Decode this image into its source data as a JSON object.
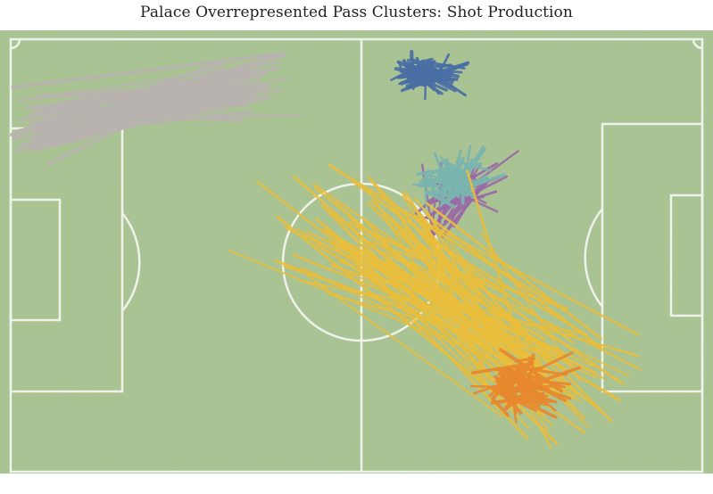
{
  "chart_data": {
    "type": "line",
    "title": "Palace Overrepresented Pass Clusters: Shot Production",
    "background": "football pitch",
    "series": [
      {
        "color": "#b9b3b0",
        "count": 60,
        "center_start": [
          5,
          78
        ],
        "center_end": [
          35,
          88
        ]
      },
      {
        "color": "#4a6fa5",
        "count": 80,
        "center_start": [
          58,
          90
        ],
        "center_end": [
          60,
          90
        ]
      },
      {
        "color": "#9a6aa8",
        "count": 30,
        "center_start": [
          62,
          58
        ],
        "center_end": [
          66,
          66
        ]
      },
      {
        "color": "#7ab5b0",
        "count": 70,
        "center_start": [
          63,
          65
        ],
        "center_end": [
          64,
          67
        ]
      },
      {
        "color": "#e9be3c",
        "count": 80,
        "center_start": [
          50,
          55
        ],
        "center_end": [
          78,
          22
        ]
      },
      {
        "color": "#e8882f",
        "count": 70,
        "center_start": [
          72,
          20
        ],
        "center_end": [
          74,
          19
        ]
      }
    ],
    "xlim": [
      0,
      100
    ],
    "ylim": [
      0,
      100
    ],
    "grid": false
  },
  "watermark": "",
  "colors": {
    "pitch": "#a7c08f",
    "pitch_light": "#b3cb99",
    "lines": "#f4f6f0"
  }
}
